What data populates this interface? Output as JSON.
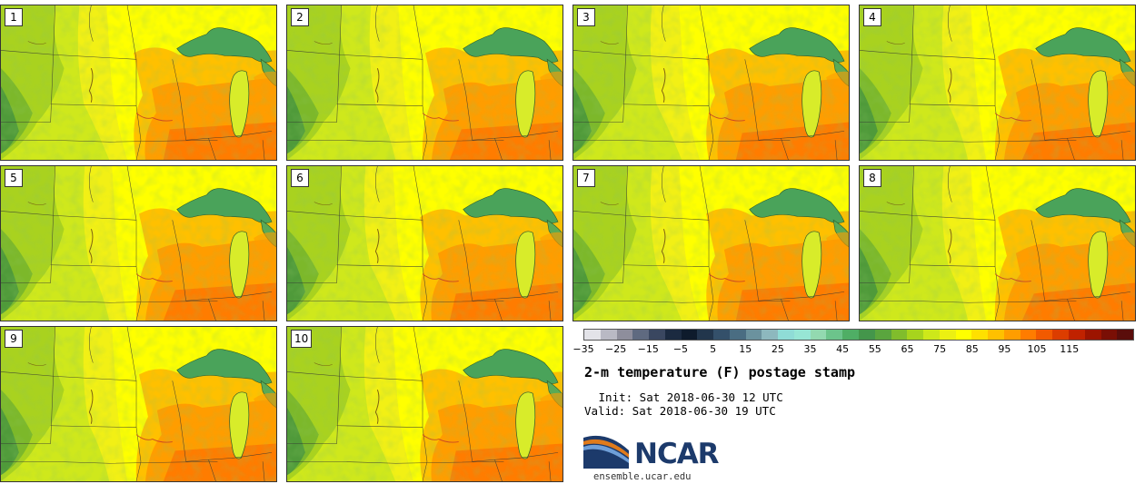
{
  "stamps": [
    {
      "label": "1",
      "variant": 0
    },
    {
      "label": "2",
      "variant": 1
    },
    {
      "label": "3",
      "variant": 2
    },
    {
      "label": "4",
      "variant": 3
    },
    {
      "label": "5",
      "variant": 1
    },
    {
      "label": "6",
      "variant": 2
    },
    {
      "label": "7",
      "variant": 0
    },
    {
      "label": "8",
      "variant": 3
    },
    {
      "label": "9",
      "variant": 1
    },
    {
      "label": "10",
      "variant": 0
    }
  ],
  "colorbar": {
    "ticks": [
      "−35",
      "−25",
      "−15",
      "−5",
      "5",
      "15",
      "25",
      "35",
      "45",
      "55",
      "65",
      "75",
      "85",
      "95",
      "105",
      "115"
    ],
    "colors": [
      "#e3e3e8",
      "#b9b9c4",
      "#8e8e9c",
      "#5f6a80",
      "#3a4760",
      "#1b2a40",
      "#0e1b2c",
      "#22364c",
      "#34506a",
      "#4a6d82",
      "#6b929e",
      "#8db8be",
      "#8fdcd6",
      "#97e6d5",
      "#93d9b0",
      "#6cc48b",
      "#4fae65",
      "#44964b",
      "#5aa53e",
      "#80bd2c",
      "#a7d41d",
      "#cde81a",
      "#ecf012",
      "#ffff00",
      "#ffe000",
      "#ffc000",
      "#ff9d00",
      "#ff7c00",
      "#f25a00",
      "#dc3d00",
      "#c02200",
      "#9c1400",
      "#7a0f05",
      "#5a0d0b"
    ]
  },
  "title": "2-m temperature (F) postage stamp",
  "init": " Init: Sat 2018-06-30 12 UTC",
  "valid": "Valid: Sat 2018-06-30 19 UTC",
  "logo": {
    "text": "NCAR",
    "url": "ensemble.ucar.edu"
  }
}
